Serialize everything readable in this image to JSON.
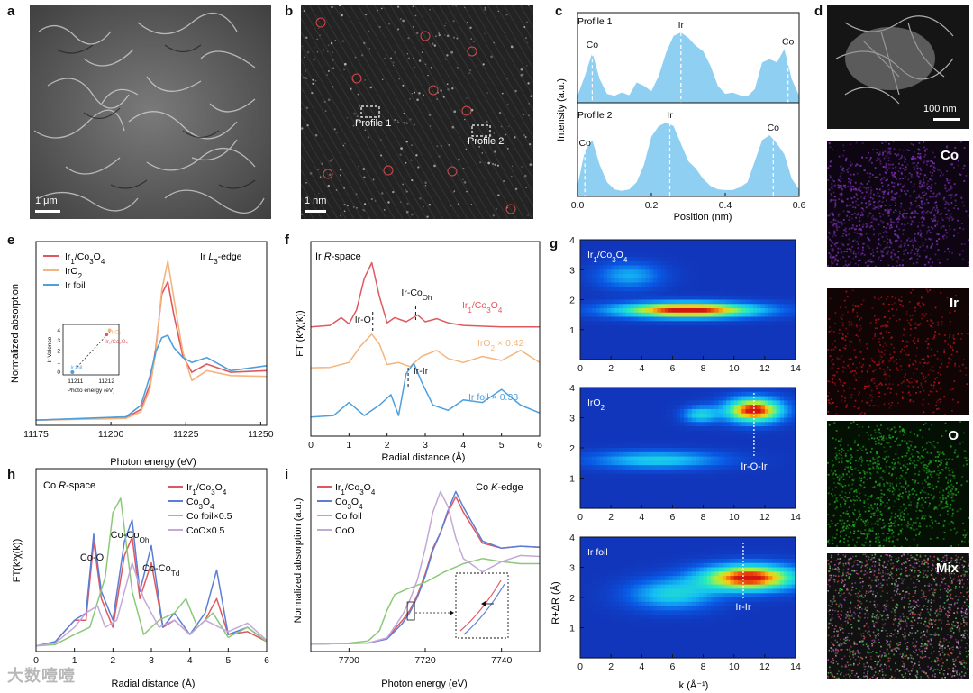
{
  "panels": {
    "a": "a",
    "b": "b",
    "c": "c",
    "d": "d",
    "e": "e",
    "f": "f",
    "g": "g",
    "h": "h",
    "i": "i"
  },
  "scalebars": {
    "a": "1 μm",
    "b": "1 nm",
    "d": "100 nm"
  },
  "profile_boxes": [
    "Profile 1",
    "Profile 2"
  ],
  "colors": {
    "fill_blue": "#8fd0f2",
    "red": "#e0585f",
    "orange": "#f3b57d",
    "blue": "#4e9fde",
    "royal": "#5b7fd6",
    "green": "#8cc87a",
    "lilac": "#c4a8d8",
    "purple": "#7b2fb0",
    "red_map": "#b3141b",
    "green_map": "#21a51e"
  },
  "maps": [
    "Co",
    "Ir",
    "O",
    "Mix"
  ],
  "watermark": "大数噎噎",
  "chart_data": [
    {
      "id": "c",
      "type": "area",
      "xlabel": "Position (nm)",
      "ylabel": "Intensity (a.u.)",
      "xlim": [
        0,
        0.6
      ],
      "xticks": [
        "0.0",
        "0.2",
        "0.4",
        "0.6"
      ],
      "series": [
        {
          "name": "Profile 1",
          "x": [
            0,
            0.02,
            0.04,
            0.06,
            0.08,
            0.1,
            0.12,
            0.14,
            0.16,
            0.18,
            0.2,
            0.22,
            0.24,
            0.26,
            0.28,
            0.3,
            0.32,
            0.34,
            0.36,
            0.38,
            0.4,
            0.42,
            0.44,
            0.46,
            0.48,
            0.5,
            0.52,
            0.54,
            0.56,
            0.58,
            0.6
          ],
          "values": [
            0.05,
            0.35,
            0.7,
            0.3,
            0.08,
            0.05,
            0.1,
            0.06,
            0.25,
            0.2,
            0.12,
            0.35,
            0.7,
            0.95,
            1.0,
            0.92,
            0.8,
            0.72,
            0.5,
            0.2,
            0.08,
            0.1,
            0.06,
            0.04,
            0.15,
            0.55,
            0.6,
            0.55,
            0.75,
            0.3,
            0.05
          ],
          "annotations": [
            {
              "label": "Co",
              "x": 0.04
            },
            {
              "label": "Ir",
              "x": 0.28
            },
            {
              "label": "Co",
              "x": 0.57
            }
          ]
        },
        {
          "name": "Profile 2",
          "x": [
            0,
            0.02,
            0.04,
            0.06,
            0.08,
            0.1,
            0.12,
            0.14,
            0.16,
            0.18,
            0.2,
            0.22,
            0.24,
            0.26,
            0.28,
            0.3,
            0.32,
            0.34,
            0.36,
            0.38,
            0.4,
            0.42,
            0.44,
            0.46,
            0.48,
            0.5,
            0.52,
            0.54,
            0.56,
            0.58,
            0.6
          ],
          "values": [
            0.1,
            0.6,
            0.75,
            0.4,
            0.15,
            0.05,
            0.03,
            0.05,
            0.15,
            0.4,
            0.8,
            0.95,
            1.0,
            0.95,
            0.7,
            0.45,
            0.35,
            0.2,
            0.1,
            0.05,
            0.04,
            0.04,
            0.08,
            0.15,
            0.45,
            0.75,
            0.82,
            0.7,
            0.55,
            0.2,
            0.05
          ],
          "annotations": [
            {
              "label": "Co",
              "x": 0.02
            },
            {
              "label": "Ir",
              "x": 0.25
            },
            {
              "label": "Co",
              "x": 0.53
            }
          ]
        }
      ]
    },
    {
      "id": "e",
      "type": "line",
      "xlabel": "Photon energy (eV)",
      "ylabel": "Normalized absorption",
      "xlim": [
        11175,
        11252
      ],
      "xticks": [
        "11175",
        "11200",
        "11225",
        "11250"
      ],
      "annotation": "Ir L₃-edge",
      "legend": [
        "Ir₁/Co₃O₄",
        "IrO₂",
        "Ir foil"
      ],
      "series": [
        {
          "name": "Ir₁/Co₃O₄",
          "x": [
            11175,
            11205,
            11210,
            11213,
            11215,
            11217,
            11219,
            11221,
            11224,
            11227,
            11232,
            11240,
            11252
          ],
          "values": [
            0.02,
            0.05,
            0.15,
            0.45,
            0.9,
            1.55,
            1.7,
            1.3,
            0.8,
            0.6,
            0.7,
            0.6,
            0.62
          ]
        },
        {
          "name": "IrO₂",
          "x": [
            11175,
            11205,
            11210,
            11213,
            11215,
            11217,
            11219,
            11221,
            11224,
            11227,
            11232,
            11240,
            11252
          ],
          "values": [
            0.02,
            0.04,
            0.12,
            0.4,
            0.85,
            1.6,
            1.95,
            1.5,
            0.85,
            0.5,
            0.62,
            0.56,
            0.55
          ]
        },
        {
          "name": "Ir foil",
          "x": [
            11175,
            11205,
            11210,
            11213,
            11215,
            11217,
            11219,
            11221,
            11224,
            11227,
            11232,
            11240,
            11252
          ],
          "values": [
            0.02,
            0.06,
            0.2,
            0.55,
            0.85,
            1.02,
            1.05,
            0.9,
            0.78,
            0.72,
            0.78,
            0.62,
            0.68
          ]
        }
      ],
      "inset": {
        "ylabel": "Ir Valence",
        "xlabel": "Photo energy (eV)",
        "xticks": [
          "11211",
          "11212"
        ],
        "yticks": [
          "0",
          "1",
          "2",
          "3",
          "4"
        ],
        "points": [
          {
            "label": "Ir foil",
            "x": 11210.9,
            "y": 0
          },
          {
            "label": "IrO₂",
            "x": 11212.1,
            "y": 4
          },
          {
            "label": "Ir₁/Co₃O₄",
            "x": 11212.0,
            "y": 3.6
          }
        ]
      }
    },
    {
      "id": "f",
      "type": "line",
      "xlabel": "Radial distance (Å)",
      "ylabel": "FT (k³χ(k))",
      "xlim": [
        0,
        6
      ],
      "xticks": [
        "0",
        "1",
        "2",
        "3",
        "4",
        "5",
        "6"
      ],
      "annotation": "Ir R-space",
      "series": [
        {
          "name": "Ir₁/Co₃O₄",
          "x": [
            0,
            0.5,
            0.8,
            1.0,
            1.2,
            1.4,
            1.6,
            1.8,
            2.0,
            2.2,
            2.5,
            2.8,
            3.0,
            3.3,
            3.6,
            4,
            5,
            6
          ],
          "values": [
            0.02,
            0.05,
            0.2,
            0.08,
            0.35,
            0.95,
            1.25,
            0.6,
            0.1,
            0.2,
            0.12,
            0.25,
            0.12,
            0.18,
            0.1,
            0.05,
            0.02,
            0.02
          ]
        },
        {
          "name": "IrO₂ × 0.42",
          "x": [
            0,
            0.5,
            1.0,
            1.3,
            1.6,
            1.8,
            2.0,
            2.3,
            2.6,
            2.9,
            3.3,
            3.6,
            4,
            4.5,
            5,
            5.5,
            6
          ],
          "values": [
            0.02,
            0.03,
            0.15,
            0.55,
            0.85,
            0.6,
            0.1,
            0.15,
            0.05,
            0.3,
            0.45,
            0.25,
            0.15,
            0.3,
            0.2,
            0.45,
            0.15
          ]
        },
        {
          "name": "Ir foil × 0.33",
          "x": [
            0,
            0.6,
            1.0,
            1.4,
            1.8,
            2.1,
            2.3,
            2.5,
            2.7,
            2.9,
            3.2,
            3.6,
            4,
            4.5,
            5,
            5.5,
            6
          ],
          "values": [
            0.02,
            0.05,
            0.3,
            0.05,
            0.25,
            0.45,
            0.05,
            0.85,
            1.05,
            0.7,
            0.25,
            0.15,
            0.35,
            0.3,
            0.55,
            0.25,
            0.1
          ]
        }
      ],
      "annotations": [
        {
          "label": "Ir-O",
          "x": 1.6
        },
        {
          "label": "Ir-Co",
          "sub": "Oh",
          "x": 2.75
        },
        {
          "label": "Ir-Ir",
          "x": 2.6
        }
      ]
    },
    {
      "id": "g",
      "type": "heatmap",
      "xlabel": "k (Å⁻¹)",
      "ylabel": "R+ΔR (Å)",
      "xlim": [
        0,
        14
      ],
      "ylim": [
        0,
        4
      ],
      "xticks": [
        "0",
        "2",
        "4",
        "6",
        "8",
        "10",
        "12",
        "14"
      ],
      "yticks": [
        "1",
        "2",
        "3",
        "4"
      ],
      "maps": [
        {
          "name": "Ir₁/Co₃O₄",
          "peaks": [
            {
              "k": 7,
              "R": 1.65,
              "intensity": 1.0,
              "sk": 3.2,
              "sR": 0.18
            },
            {
              "k": 3.2,
              "R": 2.8,
              "intensity": 0.3,
              "sk": 1.5,
              "sR": 0.3
            }
          ]
        },
        {
          "name": "IrO₂",
          "peaks": [
            {
              "k": 11.3,
              "R": 3.25,
              "intensity": 1.0,
              "sk": 1.3,
              "sR": 0.28
            },
            {
              "k": 5,
              "R": 1.6,
              "intensity": 0.4,
              "sk": 3,
              "sR": 0.2
            },
            {
              "k": 7.8,
              "R": 3.1,
              "intensity": 0.4,
              "sk": 0.8,
              "sR": 0.2
            }
          ],
          "annotation": "Ir-O-Ir",
          "annotation_k": 11.3
        },
        {
          "name": "Ir foil",
          "peaks": [
            {
              "k": 11,
              "R": 2.65,
              "intensity": 1.0,
              "sk": 2.2,
              "sR": 0.3
            },
            {
              "k": 6,
              "R": 2.1,
              "intensity": 0.4,
              "sk": 2,
              "sR": 0.35
            }
          ],
          "annotation": "Ir-Ir",
          "annotation_k": 10.6
        }
      ]
    },
    {
      "id": "h",
      "type": "line",
      "xlabel": "Radial distance (Å)",
      "ylabel": "FT(k³χ(k))",
      "xlim": [
        0,
        6
      ],
      "xticks": [
        "0",
        "1",
        "2",
        "3",
        "4",
        "5",
        "6"
      ],
      "annotation": "Co R-space",
      "legend": [
        "Ir₁/Co₃O₄",
        "Co₃O₄",
        "Co foil×0.5",
        "CoO×0.5"
      ],
      "series": [
        {
          "name": "Ir₁/Co₃O₄",
          "x": [
            0,
            0.5,
            1.0,
            1.3,
            1.5,
            1.7,
            2.0,
            2.3,
            2.5,
            2.7,
            3.0,
            3.3,
            3.6,
            4,
            4.4,
            4.7,
            5,
            5.5,
            6
          ],
          "values": [
            0.02,
            0.05,
            0.2,
            0.2,
            0.75,
            0.35,
            0.15,
            0.65,
            0.78,
            0.35,
            0.6,
            0.15,
            0.2,
            0.1,
            0.2,
            0.35,
            0.1,
            0.12,
            0.05
          ]
        },
        {
          "name": "Co₃O₄",
          "x": [
            0,
            0.5,
            1.0,
            1.3,
            1.5,
            1.7,
            2.0,
            2.3,
            2.5,
            2.7,
            3.0,
            3.3,
            3.6,
            4,
            4.4,
            4.7,
            5,
            5.5,
            6
          ],
          "values": [
            0.02,
            0.05,
            0.2,
            0.25,
            0.8,
            0.4,
            0.2,
            0.75,
            0.9,
            0.4,
            0.72,
            0.15,
            0.25,
            0.1,
            0.25,
            0.55,
            0.1,
            0.15,
            0.05
          ]
        },
        {
          "name": "Co foil×0.5",
          "x": [
            0,
            0.5,
            1.0,
            1.4,
            1.8,
            2.0,
            2.2,
            2.5,
            2.8,
            3.2,
            3.6,
            3.9,
            4.2,
            4.6,
            5,
            5.5,
            6
          ],
          "values": [
            0.02,
            0.03,
            0.1,
            0.15,
            0.5,
            0.95,
            1.05,
            0.4,
            0.1,
            0.2,
            0.25,
            0.35,
            0.15,
            0.25,
            0.08,
            0.15,
            0.05
          ]
        },
        {
          "name": "CoO×0.5",
          "x": [
            0,
            0.5,
            1.0,
            1.3,
            1.6,
            1.8,
            2.1,
            2.5,
            2.8,
            3.2,
            3.6,
            4,
            4.4,
            5,
            5.5,
            6
          ],
          "values": [
            0.02,
            0.04,
            0.15,
            0.25,
            0.3,
            0.15,
            0.2,
            0.6,
            0.35,
            0.15,
            0.2,
            0.1,
            0.2,
            0.12,
            0.18,
            0.06
          ]
        }
      ],
      "annotations": [
        {
          "label": "Co-O",
          "x": 1.5
        },
        {
          "label": "Co-Co",
          "sub": "Oh",
          "x": 2.5
        },
        {
          "label": "Co-Co",
          "sub": "Td",
          "x": 3.0
        }
      ]
    },
    {
      "id": "i",
      "type": "line",
      "xlabel": "Photon energy (eV)",
      "ylabel": "Normalized absorption (a.u.)",
      "xlim": [
        7690,
        7750
      ],
      "xticks": [
        "7700",
        "7720",
        "7740"
      ],
      "annotation": "Co K-edge",
      "legend": [
        "Ir₁/Co₃O₄",
        "Co₃O₄",
        "Co foil",
        "CoO"
      ],
      "series": [
        {
          "name": "Ir₁/Co₃O₄",
          "x": [
            7690,
            7705,
            7710,
            7714,
            7716,
            7718,
            7720,
            7722,
            7724,
            7726,
            7728,
            7730,
            7735,
            7740,
            7745,
            7750
          ],
          "values": [
            0.02,
            0.03,
            0.08,
            0.25,
            0.35,
            0.5,
            0.7,
            0.95,
            1.1,
            1.3,
            1.45,
            1.3,
            1.0,
            0.95,
            0.97,
            0.96
          ]
        },
        {
          "name": "Co₃O₄",
          "x": [
            7690,
            7705,
            7710,
            7714,
            7716,
            7718,
            7720,
            7722,
            7724,
            7726,
            7728,
            7730,
            7735,
            7740,
            7745,
            7750
          ],
          "values": [
            0.02,
            0.03,
            0.07,
            0.22,
            0.33,
            0.48,
            0.68,
            0.93,
            1.1,
            1.32,
            1.5,
            1.35,
            1.02,
            0.95,
            0.97,
            0.96
          ]
        },
        {
          "name": "Co foil",
          "x": [
            7690,
            7700,
            7705,
            7708,
            7710,
            7712,
            7715,
            7720,
            7725,
            7730,
            7735,
            7740,
            7745,
            7750
          ],
          "values": [
            0.02,
            0.03,
            0.05,
            0.15,
            0.35,
            0.5,
            0.55,
            0.62,
            0.72,
            0.8,
            0.85,
            0.82,
            0.8,
            0.8
          ]
        },
        {
          "name": "CoO",
          "x": [
            7690,
            7705,
            7710,
            7714,
            7716,
            7718,
            7720,
            7722,
            7724,
            7726,
            7728,
            7730,
            7735,
            7740,
            7745,
            7750
          ],
          "values": [
            0.02,
            0.03,
            0.08,
            0.3,
            0.45,
            0.65,
            0.95,
            1.3,
            1.5,
            1.35,
            1.05,
            0.85,
            0.72,
            0.82,
            0.88,
            0.87
          ]
        }
      ]
    }
  ]
}
